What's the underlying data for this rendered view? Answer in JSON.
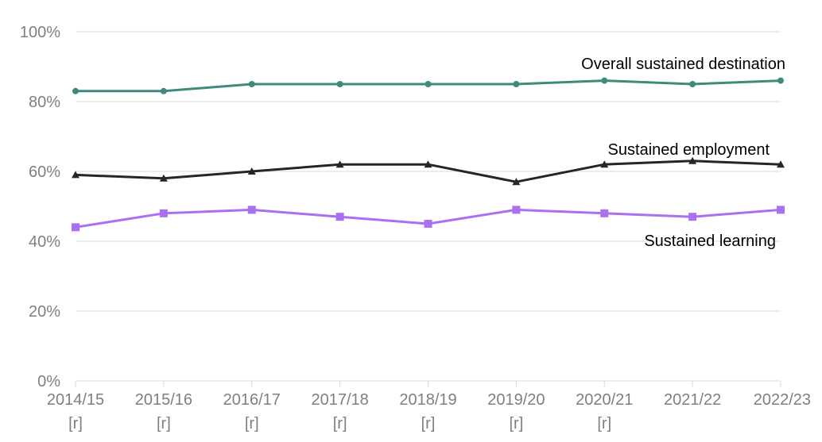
{
  "chart_data": {
    "type": "line",
    "title": "",
    "xlabel": "",
    "ylabel": "",
    "ylim": [
      0,
      100
    ],
    "y_ticks": [
      "0%",
      "20%",
      "40%",
      "60%",
      "80%",
      "100%"
    ],
    "categories": [
      {
        "label": "2014/15",
        "note": "[r]"
      },
      {
        "label": "2015/16",
        "note": "[r]"
      },
      {
        "label": "2016/17",
        "note": "[r]"
      },
      {
        "label": "2017/18",
        "note": "[r]"
      },
      {
        "label": "2018/19",
        "note": "[r]"
      },
      {
        "label": "2019/20",
        "note": "[r]"
      },
      {
        "label": "2020/21",
        "note": "[r]"
      },
      {
        "label": "2021/22",
        "note": ""
      },
      {
        "label": "2022/23",
        "note": ""
      }
    ],
    "series": [
      {
        "name": "Overall sustained destination",
        "color": "#3f8a7c",
        "marker": "circle",
        "values": [
          83,
          83,
          85,
          85,
          85,
          85,
          86,
          85,
          86
        ]
      },
      {
        "name": "Sustained employment",
        "color": "#262626",
        "marker": "triangle",
        "values": [
          59,
          58,
          60,
          62,
          62,
          57,
          62,
          63,
          62
        ]
      },
      {
        "name": "Sustained learning",
        "color": "#a970f0",
        "marker": "square",
        "values": [
          44,
          48,
          49,
          47,
          45,
          49,
          48,
          47,
          49
        ]
      }
    ],
    "grid": true,
    "legend": "inline labels at right"
  }
}
